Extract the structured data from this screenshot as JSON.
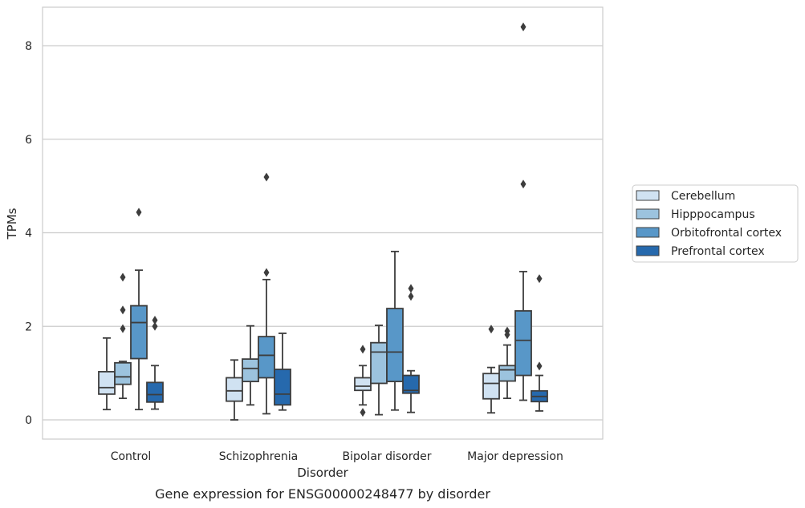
{
  "chart_data": {
    "type": "box",
    "caption": "Gene expression for ENSG00000248477 by disorder",
    "xlabel": "Disorder",
    "ylabel": "TPMs",
    "ylim": [
      -0.4,
      8.8
    ],
    "yticks": [
      0,
      2,
      4,
      6,
      8
    ],
    "grid": "horizontal",
    "legend_position": "right",
    "categories": [
      "Control",
      "Schizophrenia",
      "Bipolar disorder",
      "Major depression"
    ],
    "series": [
      {
        "name": "Cerebellum",
        "color": "#d0e2f2",
        "boxes": [
          {
            "whisker_low": 0.22,
            "q1": 0.55,
            "median": 0.69,
            "q3": 1.03,
            "whisker_high": 1.75,
            "outliers": []
          },
          {
            "whisker_low": 0.0,
            "q1": 0.4,
            "median": 0.62,
            "q3": 0.9,
            "whisker_high": 1.28,
            "outliers": []
          },
          {
            "whisker_low": 0.32,
            "q1": 0.63,
            "median": 0.72,
            "q3": 0.9,
            "whisker_high": 1.16,
            "outliers": [
              1.51,
              0.16
            ]
          },
          {
            "whisker_low": 0.15,
            "q1": 0.45,
            "median": 0.78,
            "q3": 0.99,
            "whisker_high": 1.12,
            "outliers": [
              1.94
            ]
          }
        ]
      },
      {
        "name": "Hipppocampus",
        "color": "#9cc3de",
        "boxes": [
          {
            "whisker_low": 0.46,
            "q1": 0.76,
            "median": 0.92,
            "q3": 1.22,
            "whisker_high": 1.25,
            "outliers": [
              3.05,
              2.35,
              1.95
            ]
          },
          {
            "whisker_low": 0.32,
            "q1": 0.82,
            "median": 1.1,
            "q3": 1.3,
            "whisker_high": 2.01,
            "outliers": []
          },
          {
            "whisker_low": 0.11,
            "q1": 0.78,
            "median": 1.45,
            "q3": 1.65,
            "whisker_high": 2.02,
            "outliers": []
          },
          {
            "whisker_low": 0.46,
            "q1": 0.83,
            "median": 1.07,
            "q3": 1.16,
            "whisker_high": 1.6,
            "outliers": [
              1.9,
              1.82
            ]
          }
        ]
      },
      {
        "name": "Orbitofrontal cortex",
        "color": "#5897c8",
        "boxes": [
          {
            "whisker_low": 0.22,
            "q1": 1.31,
            "median": 2.08,
            "q3": 2.44,
            "whisker_high": 3.2,
            "outliers": [
              4.44
            ]
          },
          {
            "whisker_low": 0.13,
            "q1": 0.9,
            "median": 1.38,
            "q3": 1.78,
            "whisker_high": 3.0,
            "outliers": [
              5.19,
              3.15
            ]
          },
          {
            "whisker_low": 0.21,
            "q1": 0.82,
            "median": 1.45,
            "q3": 2.38,
            "whisker_high": 3.6,
            "outliers": []
          },
          {
            "whisker_low": 0.42,
            "q1": 0.95,
            "median": 1.7,
            "q3": 2.33,
            "whisker_high": 3.17,
            "outliers": [
              8.4,
              5.04
            ]
          }
        ]
      },
      {
        "name": "Prefrontal cortex",
        "color": "#2669ad",
        "boxes": [
          {
            "whisker_low": 0.23,
            "q1": 0.38,
            "median": 0.54,
            "q3": 0.8,
            "whisker_high": 1.16,
            "outliers": [
              2.13,
              2.0
            ]
          },
          {
            "whisker_low": 0.21,
            "q1": 0.32,
            "median": 0.55,
            "q3": 1.08,
            "whisker_high": 1.85,
            "outliers": []
          },
          {
            "whisker_low": 0.16,
            "q1": 0.57,
            "median": 0.63,
            "q3": 0.95,
            "whisker_high": 1.05,
            "outliers": [
              2.81,
              2.64
            ]
          },
          {
            "whisker_low": 0.19,
            "q1": 0.39,
            "median": 0.5,
            "q3": 0.62,
            "whisker_high": 0.95,
            "outliers": [
              3.02,
              1.15
            ]
          }
        ]
      }
    ]
  }
}
